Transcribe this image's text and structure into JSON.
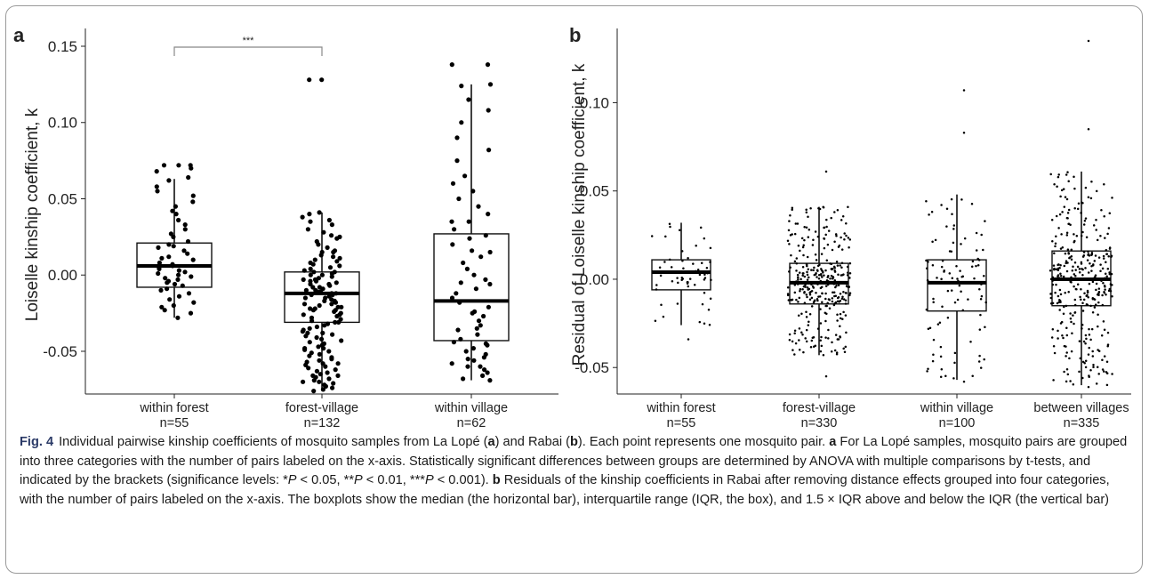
{
  "chart_data": [
    {
      "type": "box",
      "panel_label": "a",
      "title": "",
      "xlabel": "",
      "ylabel": "Loiselle kinship coefficient, k",
      "ylim": [
        -0.078,
        0.157
      ],
      "yticks": [
        -0.05,
        0.0,
        0.05,
        0.1,
        0.15
      ],
      "ytick_labels": [
        "-0.05",
        "0.00",
        "0.05",
        "0.10",
        "0.15"
      ],
      "grid": false,
      "categories": [
        "within forest",
        "forest-village",
        "within village"
      ],
      "category_counts": [
        "n=55",
        "n=132",
        "n=62"
      ],
      "boxes": [
        {
          "min": -0.028,
          "q1": -0.008,
          "median": 0.006,
          "q3": 0.021,
          "max": 0.063
        },
        {
          "min": -0.076,
          "q1": -0.031,
          "median": -0.012,
          "q3": 0.002,
          "max": 0.041
        },
        {
          "min": -0.069,
          "q1": -0.043,
          "median": -0.017,
          "q3": 0.027,
          "max": 0.125
        }
      ],
      "points": [
        [
          0.072,
          0.072,
          0.072,
          0.07,
          0.068,
          0.064,
          0.062,
          0.058,
          0.055,
          0.052,
          0.048,
          0.045,
          0.042,
          0.04,
          0.036,
          0.033,
          0.03,
          0.027,
          0.025,
          0.022,
          0.02,
          0.019,
          0.018,
          0.016,
          0.014,
          0.012,
          0.011,
          0.01,
          0.008,
          0.007,
          0.006,
          0.005,
          0.004,
          0.003,
          0.002,
          0.001,
          0.0,
          -0.001,
          -0.002,
          -0.003,
          -0.004,
          -0.005,
          -0.006,
          -0.007,
          -0.009,
          -0.01,
          -0.012,
          -0.014,
          -0.016,
          -0.018,
          -0.02,
          -0.021,
          -0.023,
          -0.025,
          -0.028
        ],
        [
          0.128,
          0.128,
          0.041,
          0.04,
          0.038,
          0.036,
          0.033,
          0.03,
          0.028,
          0.026,
          0.024,
          0.022,
          0.02,
          0.018,
          0.016,
          0.015,
          0.013,
          0.012,
          0.011,
          0.01,
          0.009,
          0.008,
          0.007,
          0.006,
          0.005,
          0.004,
          0.003,
          0.002,
          0.002,
          0.001,
          0.0,
          0.0,
          -0.001,
          -0.002,
          -0.003,
          -0.004,
          -0.004,
          -0.005,
          -0.006,
          -0.006,
          -0.007,
          -0.008,
          -0.008,
          -0.009,
          -0.01,
          -0.01,
          -0.011,
          -0.011,
          -0.012,
          -0.012,
          -0.013,
          -0.013,
          -0.014,
          -0.015,
          -0.015,
          -0.016,
          -0.017,
          -0.017,
          -0.018,
          -0.019,
          -0.019,
          -0.02,
          -0.021,
          -0.021,
          -0.022,
          -0.023,
          -0.023,
          -0.024,
          -0.025,
          -0.026,
          -0.026,
          -0.027,
          -0.028,
          -0.029,
          -0.03,
          -0.031,
          -0.031,
          -0.032,
          -0.033,
          -0.034,
          -0.035,
          -0.036,
          -0.037,
          -0.038,
          -0.039,
          -0.04,
          -0.041,
          -0.042,
          -0.043,
          -0.044,
          -0.045,
          -0.046,
          -0.047,
          -0.048,
          -0.049,
          -0.05,
          -0.051,
          -0.052,
          -0.053,
          -0.054,
          -0.055,
          -0.056,
          -0.057,
          -0.058,
          -0.059,
          -0.06,
          -0.061,
          -0.062,
          -0.063,
          -0.064,
          -0.065,
          -0.066,
          -0.067,
          -0.068,
          -0.069,
          -0.07,
          -0.071,
          -0.072,
          -0.073,
          -0.074,
          -0.075,
          -0.076,
          0.035,
          0.025,
          0.015,
          -0.003,
          -0.022,
          -0.038,
          -0.048,
          -0.058,
          -0.066,
          -0.07
        ],
        [
          0.138,
          0.138,
          0.125,
          0.124,
          0.115,
          0.108,
          0.1,
          0.09,
          0.082,
          0.075,
          0.065,
          0.06,
          0.055,
          0.05,
          0.045,
          0.04,
          0.035,
          0.03,
          0.026,
          0.024,
          0.02,
          0.016,
          0.012,
          0.008,
          0.004,
          0.0,
          -0.003,
          -0.006,
          -0.009,
          -0.012,
          -0.015,
          -0.018,
          -0.021,
          -0.024,
          -0.027,
          -0.03,
          -0.033,
          -0.036,
          -0.039,
          -0.042,
          -0.044,
          -0.046,
          -0.048,
          -0.05,
          -0.052,
          -0.054,
          -0.056,
          -0.058,
          -0.06,
          -0.062,
          -0.064,
          -0.066,
          -0.068,
          -0.069,
          0.035,
          0.015,
          -0.005,
          -0.025,
          -0.045,
          -0.055,
          -0.035,
          -0.06
        ]
      ],
      "significance": [
        {
          "from": "within forest",
          "to": "forest-village",
          "label": "***"
        }
      ]
    },
    {
      "type": "box",
      "panel_label": "b",
      "title": "",
      "xlabel": "",
      "ylabel": "Residual of Loiselle kinship coefficient, k",
      "ylim": [
        -0.065,
        0.138
      ],
      "yticks": [
        -0.05,
        0.0,
        0.05,
        0.1
      ],
      "ytick_labels": [
        "-0.05",
        "0.00",
        "0.05",
        "0.10"
      ],
      "grid": false,
      "categories": [
        "within forest",
        "forest-village",
        "within village",
        "between villages"
      ],
      "category_counts": [
        "n=55",
        "n=330",
        "n=100",
        "n=335"
      ],
      "boxes": [
        {
          "min": -0.026,
          "q1": -0.006,
          "median": 0.004,
          "q3": 0.011,
          "max": 0.032
        },
        {
          "min": -0.043,
          "q1": -0.014,
          "median": -0.002,
          "q3": 0.009,
          "max": 0.041
        },
        {
          "min": -0.057,
          "q1": -0.018,
          "median": -0.002,
          "q3": 0.011,
          "max": 0.048
        },
        {
          "min": -0.06,
          "q1": -0.015,
          "median": 0.0,
          "q3": 0.016,
          "max": 0.061
        }
      ],
      "outliers": [
        [
          -0.034
        ],
        [
          0.061,
          -0.055
        ],
        [
          0.107,
          0.083,
          -0.058
        ],
        [
          0.135,
          0.085,
          -0.061
        ]
      ]
    }
  ],
  "caption": {
    "figure_label": "Fig. 4",
    "text_html": "Individual pairwise kinship coefficients of mosquito samples from La Lopé (<b>a</b>) and Rabai (<b>b</b>). Each point represents one mosquito pair. <b>a</b> For La Lopé samples, mosquito pairs are grouped into three categories with the number of pairs labeled on the x-axis. Statistically significant differences between groups are determined by ANOVA with multiple comparisons by t-tests, and indicated by the brackets (significance levels: *<i>P</i> &lt; 0.05, **<i>P</i> &lt; 0.01, ***<i>P</i> &lt; 0.001). <b>b</b> Residuals of the kinship coefficients in Rabai after removing distance effects grouped into four categories, with the number of pairs labeled on the x-axis. The boxplots show the median (the horizontal bar), interquartile range (IQR, the box), and 1.5 × IQR above and below the IQR (the vertical bar)"
  }
}
